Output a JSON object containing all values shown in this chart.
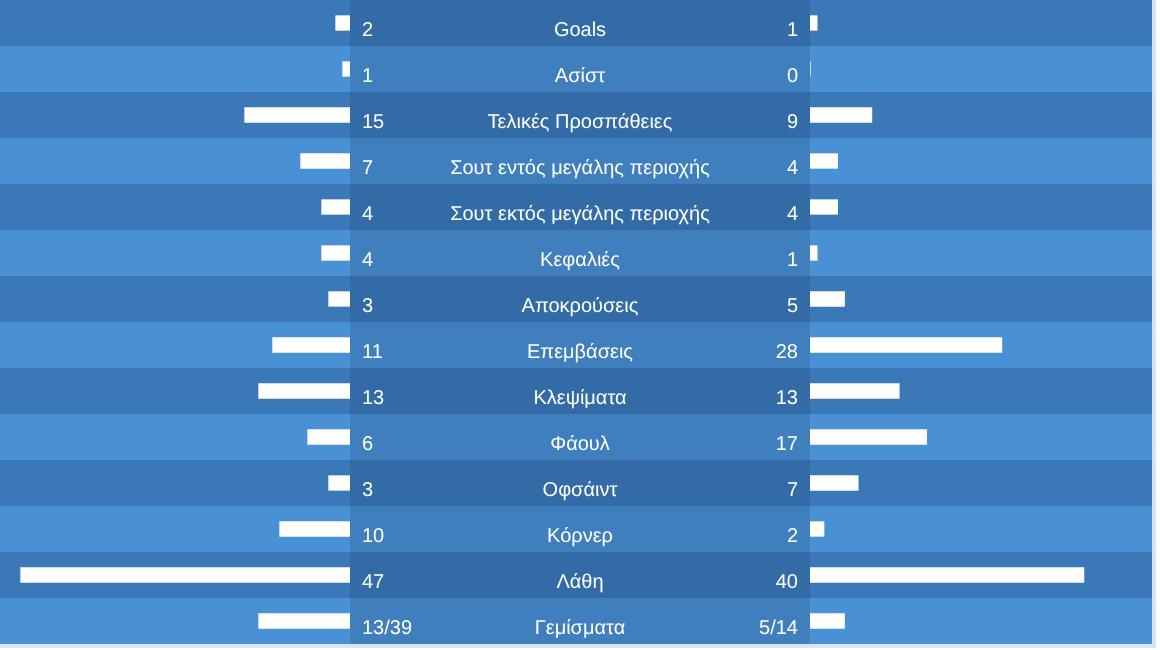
{
  "chart_data": [
    {
      "type": "bar",
      "orientation": "horizontal",
      "tick_labels": "y",
      "legend": false,
      "categories": [
        "Goals",
        "Ασίστ",
        "Τελικές Προσπάθειες",
        "Σουτ εντός μεγάλης περιοχής",
        "Σουτ εκτός μεγάλης περιοχής",
        "Κεφαλιές",
        "Αποκρούσεις",
        "Επεμβάσεις",
        "Κλεψίματα",
        "Φάουλ",
        "Οφσάιντ",
        "Κόρνερ",
        "Λάθη",
        "Γεμίσματα"
      ],
      "xlim": [
        50,
        0
      ],
      "series": [
        {
          "color": "#ffffff",
          "values": [
            2,
            1,
            15,
            7,
            4,
            4,
            3,
            11,
            13,
            6,
            3,
            10,
            47,
            13
          ],
          "value_labels": [
            "2",
            "1",
            "15",
            "7",
            "4",
            "4",
            "3",
            "11",
            "13",
            "6",
            "3",
            "10",
            "47",
            "13/39"
          ]
        }
      ]
    },
    {
      "type": "bar",
      "orientation": "horizontal",
      "tick_labels": false,
      "legend": false,
      "categories": [
        null,
        null,
        null,
        null,
        null,
        null,
        null,
        null,
        null,
        null,
        null,
        null,
        null,
        null
      ],
      "xlim": [
        0,
        50
      ],
      "series": [
        {
          "color": "#ffffff",
          "values": [
            1,
            0,
            9,
            4,
            4,
            1,
            5,
            28,
            13,
            17,
            7,
            2,
            40,
            5
          ],
          "value_labels": [
            "1",
            "0",
            "9",
            "4",
            "4",
            "1",
            "5",
            "28",
            "13",
            "17",
            "7",
            "2",
            "40",
            "5/14"
          ]
        }
      ]
    }
  ]
}
